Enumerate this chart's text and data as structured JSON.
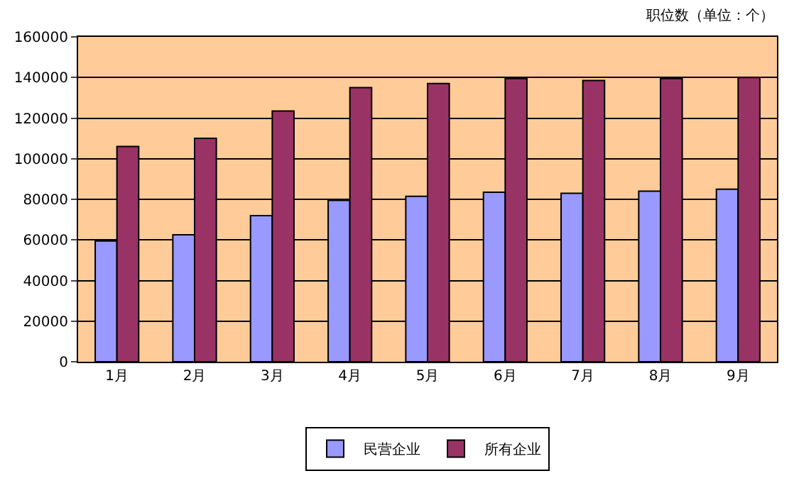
{
  "chart_data": {
    "type": "bar",
    "categories": [
      "1月",
      "2月",
      "3月",
      "4月",
      "5月",
      "6月",
      "7月",
      "8月",
      "9月"
    ],
    "series": [
      {
        "name": "民营企业",
        "color": "#9999ff",
        "values": [
          59500,
          62500,
          72000,
          79500,
          81500,
          83500,
          83000,
          84000,
          85000
        ]
      },
      {
        "name": "所有企业",
        "color": "#993366",
        "values": [
          106000,
          110000,
          123500,
          135000,
          137000,
          139500,
          138500,
          139500,
          140000
        ]
      }
    ],
    "annotations": [
      "职位数（单位：个）"
    ],
    "ylim": [
      0,
      160000
    ],
    "yticks": [
      0,
      20000,
      40000,
      60000,
      80000,
      100000,
      120000,
      140000,
      160000
    ],
    "grid": "y",
    "legend": "bottom"
  }
}
